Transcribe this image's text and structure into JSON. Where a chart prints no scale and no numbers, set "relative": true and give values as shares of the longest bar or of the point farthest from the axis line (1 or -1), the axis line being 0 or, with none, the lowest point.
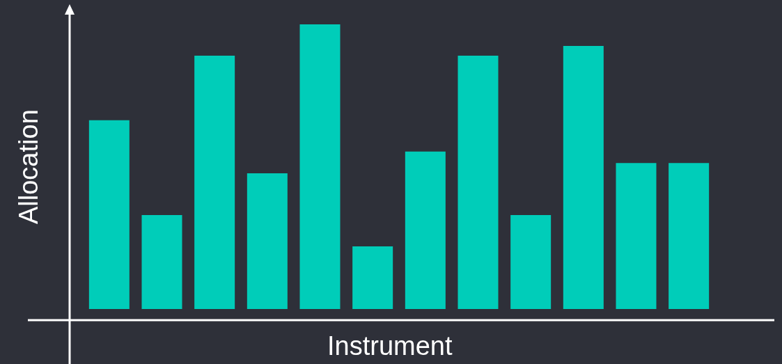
{
  "chart_data": {
    "type": "bar",
    "relative": true,
    "xlabel": "Instrument",
    "ylabel": "Allocation",
    "categories": [
      null,
      null,
      null,
      null,
      null,
      null,
      null,
      null,
      null,
      null,
      null,
      null
    ],
    "values": [
      0.663,
      0.33,
      0.89,
      0.477,
      1,
      0.22,
      0.553,
      0.89,
      0.33,
      0.924,
      0.513,
      0.513
    ],
    "color": "#00cdb9"
  }
}
